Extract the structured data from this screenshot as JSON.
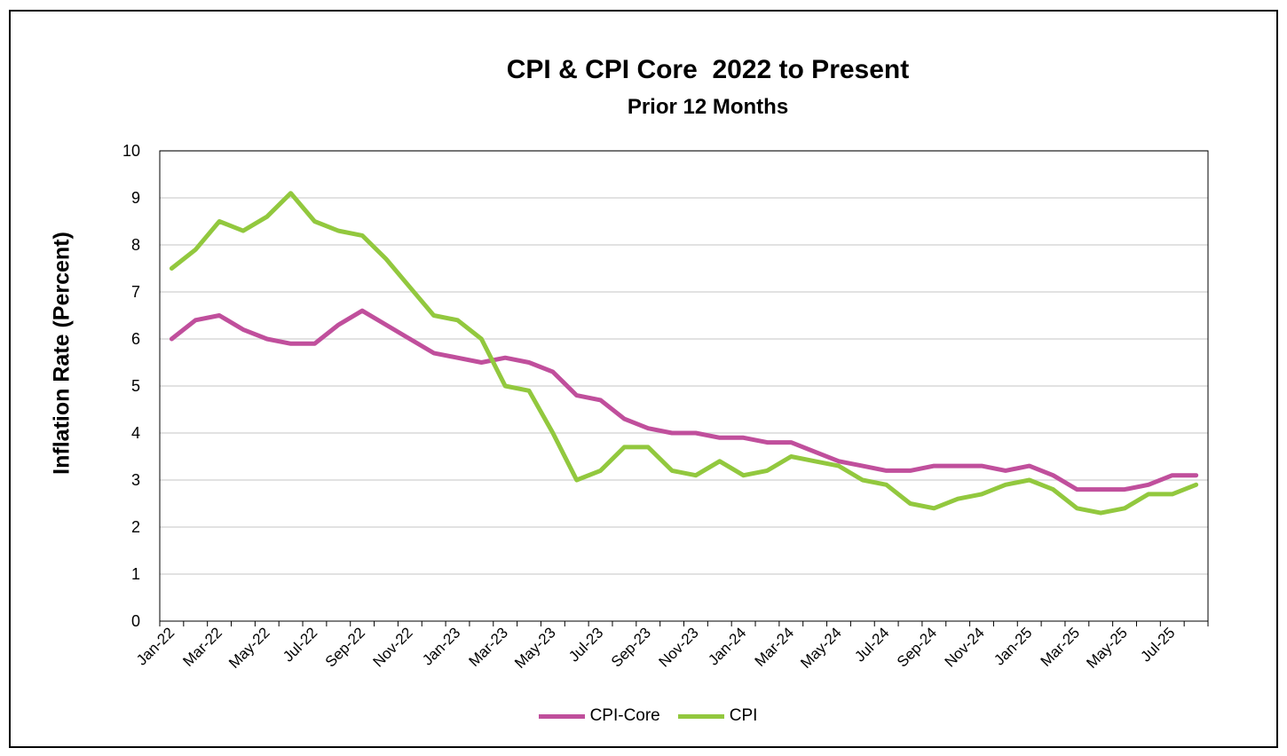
{
  "chart_data": {
    "type": "line",
    "title": "CPI & CPI Core  2022 to Present",
    "subtitle": "Prior 12 Months",
    "xlabel": "",
    "ylabel": "Inflation Rate (Percent)",
    "ylim": [
      0,
      10
    ],
    "yticks": [
      "0",
      "1",
      "2",
      "3",
      "4",
      "5",
      "6",
      "7",
      "8",
      "9",
      "10"
    ],
    "grid": true,
    "legend_position": "bottom",
    "x": [
      "Jan-22",
      "Feb-22",
      "Mar-22",
      "Apr-22",
      "May-22",
      "Jun-22",
      "Jul-22",
      "Aug-22",
      "Sep-22",
      "Oct-22",
      "Nov-22",
      "Dec-22",
      "Jan-23",
      "Feb-23",
      "Mar-23",
      "Apr-23",
      "May-23",
      "Jun-23",
      "Jul-23",
      "Aug-23",
      "Sep-23",
      "Oct-23",
      "Nov-23",
      "Dec-23",
      "Jan-24",
      "Feb-24",
      "Mar-24",
      "Apr-24",
      "May-24",
      "Jun-24",
      "Jul-24",
      "Aug-24",
      "Sep-24",
      "Oct-24",
      "Nov-24",
      "Dec-24",
      "Jan-25",
      "Feb-25",
      "Mar-25",
      "Apr-25",
      "May-25",
      "Jun-25",
      "Jul-25",
      "Aug-25"
    ],
    "xtick_labels": [
      "Jan-22",
      "Mar-22",
      "May-22",
      "Jul-22",
      "Sep-22",
      "Nov-22",
      "Jan-23",
      "Mar-23",
      "May-23",
      "Jul-23",
      "Sep-23",
      "Nov-23",
      "Jan-24",
      "Mar-24",
      "May-24",
      "Jul-24",
      "Sep-24",
      "Nov-24",
      "Jan-25",
      "Mar-25",
      "May-25",
      "Jul-25"
    ],
    "series": [
      {
        "name": "CPI-Core",
        "color": "#c04f9c",
        "values": [
          6.0,
          6.4,
          6.5,
          6.2,
          6.0,
          5.9,
          5.9,
          6.3,
          6.6,
          6.3,
          6.0,
          5.7,
          5.6,
          5.5,
          5.6,
          5.5,
          5.3,
          4.8,
          4.7,
          4.3,
          4.1,
          4.0,
          4.0,
          3.9,
          3.9,
          3.8,
          3.8,
          3.6,
          3.4,
          3.3,
          3.2,
          3.2,
          3.3,
          3.3,
          3.3,
          3.2,
          3.3,
          3.1,
          2.8,
          2.8,
          2.8,
          2.9,
          3.1,
          3.1
        ]
      },
      {
        "name": "CPI",
        "color": "#92c83e",
        "values": [
          7.5,
          7.9,
          8.5,
          8.3,
          8.6,
          9.1,
          8.5,
          8.3,
          8.2,
          7.7,
          7.1,
          6.5,
          6.4,
          6.0,
          5.0,
          4.9,
          4.0,
          3.0,
          3.2,
          3.7,
          3.7,
          3.2,
          3.1,
          3.4,
          3.1,
          3.2,
          3.5,
          3.4,
          3.3,
          3.0,
          2.9,
          2.5,
          2.4,
          2.6,
          2.7,
          2.9,
          3.0,
          2.8,
          2.4,
          2.3,
          2.4,
          2.7,
          2.7,
          2.9
        ]
      }
    ]
  }
}
